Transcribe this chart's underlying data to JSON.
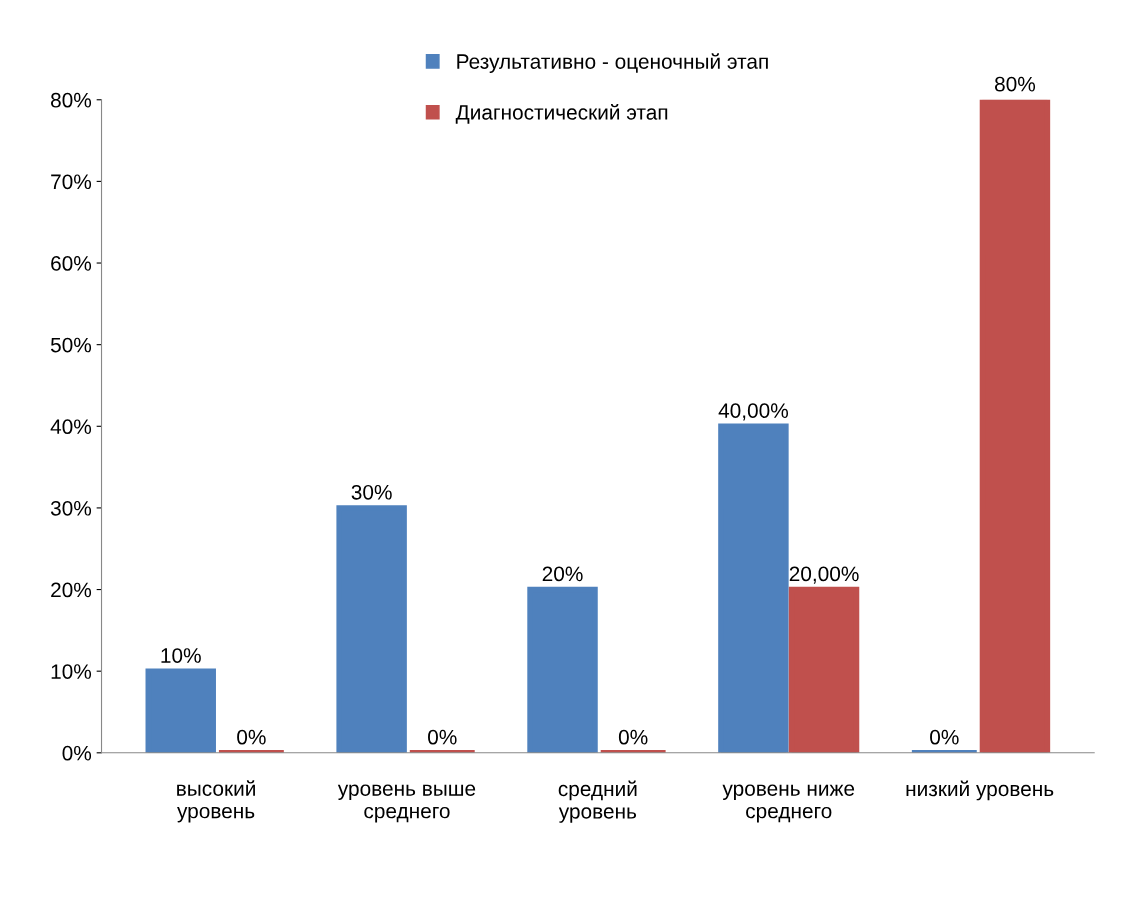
{
  "chart_data": {
    "type": "bar",
    "categories": [
      "высокий\nуровень",
      "уровень выше\nсреднего",
      "средний\nуровень",
      "уровень ниже\nсреднего",
      "низкий уровень"
    ],
    "series": [
      {
        "name": "Результативно - оценочный этап",
        "color": "#4f81bd",
        "values": [
          10,
          30,
          20,
          40,
          0
        ],
        "value_labels": [
          "10%",
          "30%",
          "20%",
          "40,00%",
          "0%"
        ]
      },
      {
        "name": "Диагностический этап",
        "color": "#c0504d",
        "values": [
          0,
          0,
          0,
          20,
          80
        ],
        "value_labels": [
          "0%",
          "0%",
          "0%",
          "20,00%",
          "80%"
        ]
      }
    ],
    "ylim": [
      0,
      80
    ],
    "yticks": [
      {
        "value": 0,
        "label": "0%"
      },
      {
        "value": 10,
        "label": "10%"
      },
      {
        "value": 20,
        "label": "20%"
      },
      {
        "value": 30,
        "label": "30%"
      },
      {
        "value": 40,
        "label": "40%"
      },
      {
        "value": 50,
        "label": "50%"
      },
      {
        "value": 60,
        "label": "60%"
      },
      {
        "value": 70,
        "label": "70%"
      },
      {
        "value": 80,
        "label": "80%"
      }
    ],
    "grid": false,
    "legend": "top"
  }
}
